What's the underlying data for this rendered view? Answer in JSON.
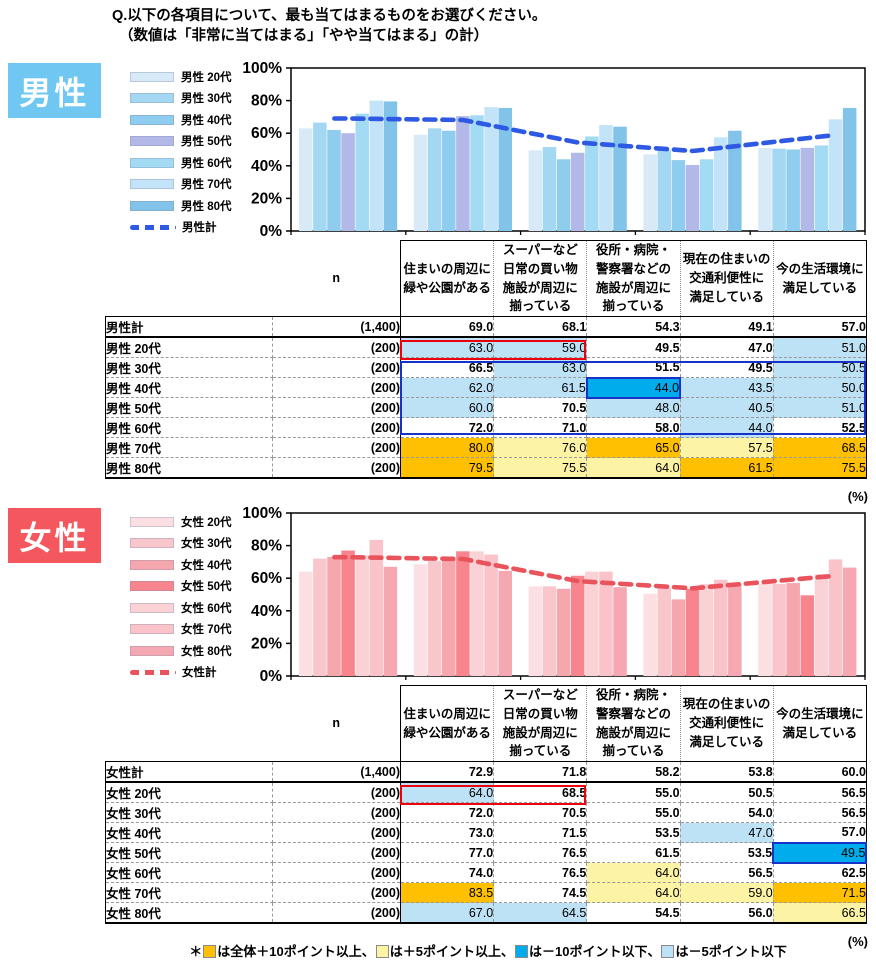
{
  "title": {
    "line1": "Q.以下の各項目について、最も当てはまるものをお選びください。",
    "line2": "（数値は「非常に当てはまる」「やや当てはまる」の計）"
  },
  "pct_label": "(%)",
  "columns": {
    "n_label": "n",
    "headers": [
      [
        "住まいの周辺に",
        "緑や公園がある"
      ],
      [
        "スーパーなど",
        "日常の買い物",
        "施設が周辺に",
        "揃っている"
      ],
      [
        "役所・病院・",
        "警察署などの",
        "施設が周辺に",
        "揃っている"
      ],
      [
        "現在の住まいの",
        "交通利便性に",
        "満足している"
      ],
      [
        "今の生活環境に",
        "満足している"
      ]
    ]
  },
  "palette": {
    "w": "#FFFFFF",
    "lb": "#BDE1F5",
    "b": "#00ACEC",
    "ly": "#FCF3A5",
    "o": "#FFC001",
    "b_border": "#1632C8",
    "red_box": "#EB000E",
    "blue_box": "#1632C8"
  },
  "chart_data": [
    {
      "type": "bar+line",
      "title": "男性",
      "ylim": [
        0,
        100
      ],
      "y_ticks": [
        "100%",
        "80%",
        "60%",
        "40%",
        "20%",
        "0%"
      ],
      "grid": false,
      "legend_position": "left",
      "categories": [
        "住まいの周辺に緑や公園がある",
        "スーパーなど日常の買い物施設が周辺に揃っている",
        "役所・病院・警察署などの施設が周辺に揃っている",
        "現在の住まいの交通利便性に満足している",
        "今の生活環境に満足している"
      ],
      "series": [
        {
          "name": "男性 20代",
          "values": [
            63.0,
            59.0,
            49.5,
            47.0,
            51.0
          ]
        },
        {
          "name": "男性 30代",
          "values": [
            66.5,
            63.0,
            51.5,
            49.5,
            50.5
          ]
        },
        {
          "name": "男性 40代",
          "values": [
            62.0,
            61.5,
            44.0,
            43.5,
            50.0
          ]
        },
        {
          "name": "男性 50代",
          "values": [
            60.0,
            70.5,
            48.0,
            40.5,
            51.0
          ]
        },
        {
          "name": "男性 60代",
          "values": [
            72.0,
            71.0,
            58.0,
            44.0,
            52.5
          ]
        },
        {
          "name": "男性 70代",
          "values": [
            80.0,
            76.0,
            65.0,
            57.5,
            68.5
          ]
        },
        {
          "name": "男性 80代",
          "values": [
            79.5,
            75.5,
            64.0,
            61.5,
            75.5
          ]
        }
      ],
      "line_series": {
        "name": "男性計",
        "values": [
          69.0,
          68.1,
          54.3,
          49.1,
          57.0
        ]
      }
    },
    {
      "type": "bar+line",
      "title": "女性",
      "ylim": [
        0,
        100
      ],
      "y_ticks": [
        "100%",
        "80%",
        "60%",
        "40%",
        "20%",
        "0%"
      ],
      "grid": false,
      "legend_position": "left",
      "categories": [
        "住まいの周辺に緑や公園がある",
        "スーパーなど日常の買い物施設が周辺に揃っている",
        "役所・病院・警察署などの施設が周辺に揃っている",
        "現在の住まいの交通利便性に満足している",
        "今の生活環境に満足している"
      ],
      "series": [
        {
          "name": "女性 20代",
          "values": [
            64.0,
            68.5,
            55.0,
            50.5,
            56.5
          ]
        },
        {
          "name": "女性 30代",
          "values": [
            72.0,
            70.5,
            55.0,
            54.0,
            56.5
          ]
        },
        {
          "name": "女性 40代",
          "values": [
            73.0,
            71.5,
            53.5,
            47.0,
            57.0
          ]
        },
        {
          "name": "女性 50代",
          "values": [
            77.0,
            76.5,
            61.5,
            53.5,
            49.5
          ]
        },
        {
          "name": "女性 60代",
          "values": [
            74.0,
            76.5,
            64.0,
            56.5,
            62.5
          ]
        },
        {
          "name": "女性 70代",
          "values": [
            83.5,
            74.5,
            64.0,
            59.0,
            71.5
          ]
        },
        {
          "name": "女性 80代",
          "values": [
            67.0,
            64.5,
            54.5,
            56.0,
            66.5
          ]
        }
      ],
      "line_series": {
        "name": "女性計",
        "values": [
          72.9,
          71.8,
          58.2,
          53.8,
          60.0
        ]
      }
    }
  ],
  "sections": [
    {
      "key": "male",
      "badge": "男性",
      "badge_color": "#6FC7F2",
      "line_color": "#2E59E3",
      "bar_colors": [
        "#D8EAF8",
        "#A4D7F2",
        "#8FCDEE",
        "#B2B9E9",
        "#A3DBF5",
        "#C3E3F8",
        "#82C3E9"
      ],
      "n_total": "(1,400)",
      "rows_n": [
        "(200)",
        "(200)",
        "(200)",
        "(200)",
        "(200)",
        "(200)",
        "(200)"
      ],
      "fills": [
        [
          "lb",
          "lb",
          "w",
          "w",
          "lb"
        ],
        [
          "w",
          "lb",
          "w",
          "w",
          "lb"
        ],
        [
          "lb",
          "lb",
          "b",
          "lb",
          "lb"
        ],
        [
          "lb",
          "w",
          "lb",
          "lb",
          "lb"
        ],
        [
          "w",
          "w",
          "w",
          "lb",
          "w"
        ],
        [
          "o",
          "ly",
          "o",
          "ly",
          "o"
        ],
        [
          "o",
          "ly",
          "ly",
          "o",
          "o"
        ]
      ],
      "red_box_cols": 2,
      "blue_box_rows": [
        1,
        4
      ]
    },
    {
      "key": "female",
      "badge": "女性",
      "badge_color": "#F4585E",
      "line_color": "#E9545C",
      "bar_colors": [
        "#FBDFE3",
        "#F9C6CB",
        "#F6A6AD",
        "#F8858D",
        "#FAD2D6",
        "#F9C3C9",
        "#F5A8B1"
      ],
      "n_total": "(1,400)",
      "rows_n": [
        "(200)",
        "(200)",
        "(200)",
        "(200)",
        "(200)",
        "(200)",
        "(200)"
      ],
      "fills": [
        [
          "lb",
          "w",
          "w",
          "w",
          "w"
        ],
        [
          "w",
          "w",
          "w",
          "w",
          "w"
        ],
        [
          "w",
          "w",
          "w",
          "lb",
          "w"
        ],
        [
          "w",
          "w",
          "w",
          "w",
          "b"
        ],
        [
          "w",
          "w",
          "ly",
          "w",
          "w"
        ],
        [
          "o",
          "w",
          "ly",
          "ly",
          "o"
        ],
        [
          "lb",
          "lb",
          "w",
          "w",
          "ly"
        ]
      ],
      "red_box_cols": 2,
      "blue_box_rows": null
    }
  ],
  "footnote": {
    "prefix": "＊",
    "items": [
      {
        "color": "#FFC001",
        "text": "は全体＋10ポイント以上、"
      },
      {
        "color": "#FCF3A5",
        "text": "は＋5ポイント以上、"
      },
      {
        "color": "#00ACEC",
        "text": "は－10ポイント以下、"
      },
      {
        "color": "#BDE1F5",
        "text": "は－5ポイント以下"
      }
    ]
  }
}
